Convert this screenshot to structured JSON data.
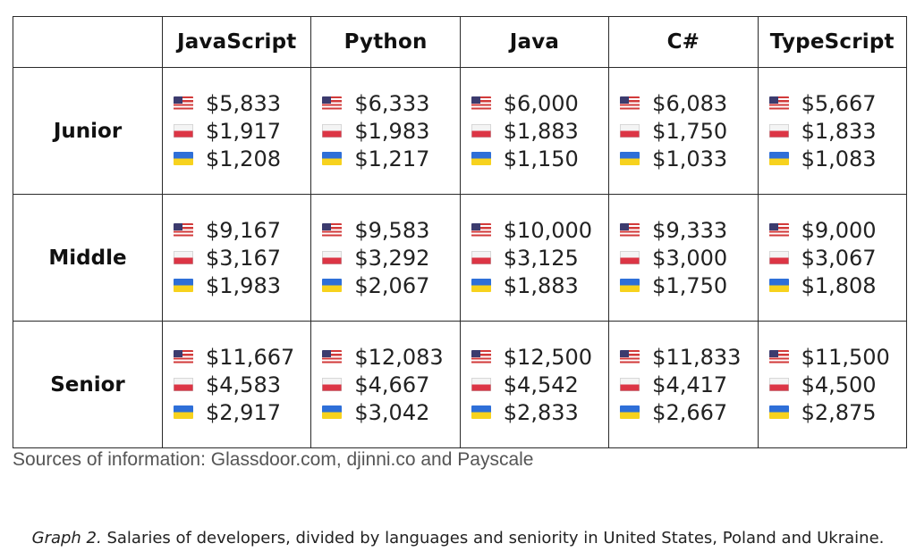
{
  "chart_data": {
    "type": "table",
    "columns": [
      "JavaScript",
      "Python",
      "Java",
      "C#",
      "TypeScript"
    ],
    "rows": [
      {
        "level": "Junior",
        "cells": [
          [
            "$5,833",
            "$1,917",
            "$1,208"
          ],
          [
            "$6,333",
            "$1,983",
            "$1,217"
          ],
          [
            "$6,000",
            "$1,883",
            "$1,150"
          ],
          [
            "$6,083",
            "$1,750",
            "$1,033"
          ],
          [
            "$5,667",
            "$1,833",
            "$1,083"
          ]
        ]
      },
      {
        "level": "Middle",
        "cells": [
          [
            "$9,167",
            "$3,167",
            "$1,983"
          ],
          [
            "$9,583",
            "$3,292",
            "$2,067"
          ],
          [
            "$10,000",
            "$3,125",
            "$1,883"
          ],
          [
            "$9,333",
            "$3,000",
            "$1,750"
          ],
          [
            "$9,000",
            "$3,067",
            "$1,808"
          ]
        ]
      },
      {
        "level": "Senior",
        "cells": [
          [
            "$11,667",
            "$4,583",
            "$2,917"
          ],
          [
            "$12,083",
            "$4,667",
            "$3,042"
          ],
          [
            "$12,500",
            "$4,542",
            "$2,833"
          ],
          [
            "$11,833",
            "$4,417",
            "$2,667"
          ],
          [
            "$11,500",
            "$4,500",
            "$2,875"
          ]
        ]
      }
    ],
    "flag_icons": [
      "us-flag-icon",
      "poland-flag-icon",
      "ukraine-flag-icon"
    ]
  },
  "source": "Sources of information: Glassdoor.com, djinni.co and Payscale",
  "caption": {
    "label": "Graph 2.",
    "text": " Salaries of developers, divided by languages and seniority in United States, Poland and Ukraine."
  },
  "colors": {
    "us_red": "#d23a3a",
    "us_blue": "#3c3b6e",
    "pl_red": "#dc3545",
    "ua_blue": "#2e6fd8",
    "ua_yellow": "#f7d21e",
    "border": "#2a2a2a"
  }
}
